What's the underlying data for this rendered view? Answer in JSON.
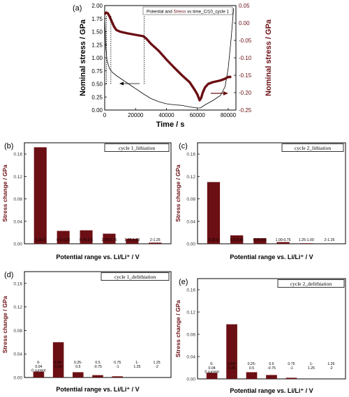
{
  "chart_data": [
    {
      "id": "a",
      "panel_label": "(a)",
      "type": "line",
      "legend": {
        "prefix": "Potential and ",
        "highlight": "Stress",
        "suffix": " vs time_C/10_cycle 1"
      },
      "xlabel": "Time / s",
      "ylabel_left": "Nominal stress / GPa",
      "ylabel_right": "Nominal stress / GPa",
      "xlim": [
        0,
        85000
      ],
      "ylim_left": [
        0,
        2.0
      ],
      "ylim_right": [
        -0.25,
        0.05
      ],
      "x_ticks": [
        "0",
        "20000",
        "40000",
        "60000",
        "80000"
      ],
      "y_ticks_left": [
        "0.00",
        "0.25",
        "0.50",
        "0.75",
        "1.00",
        "1.25",
        "1.50",
        "1.75",
        "2.00"
      ],
      "y_ticks_right": [
        "-0.25",
        "-0.20",
        "-0.15",
        "-0.10",
        "-0.05",
        "0.00",
        "0.05"
      ],
      "series": [
        {
          "role": "potential",
          "axis": "left",
          "color": "#000000",
          "x": [
            0,
            300,
            700,
            1500,
            3000,
            5000,
            8000,
            12000,
            18000,
            25000,
            30000,
            35000,
            40000,
            45000,
            50000,
            55000,
            60000,
            62000,
            65000,
            70000,
            75000,
            78000,
            80000,
            82000,
            83500
          ],
          "y": [
            1.78,
            1.55,
            1.2,
            0.95,
            0.8,
            0.72,
            0.65,
            0.57,
            0.45,
            0.31,
            0.22,
            0.16,
            0.12,
            0.1,
            0.09,
            0.06,
            0.04,
            0.04,
            0.1,
            0.18,
            0.28,
            0.45,
            0.8,
            1.4,
            1.95
          ]
        },
        {
          "role": "stress",
          "axis": "right",
          "color": "#6b0f14",
          "x": [
            0,
            1000,
            2000,
            3000,
            4000,
            5000,
            6000,
            7500,
            10000,
            15000,
            20000,
            25000,
            27000,
            30000,
            35000,
            40000,
            45000,
            50000,
            55000,
            58000,
            60000,
            61500,
            62500,
            63500,
            65000,
            67000,
            70000,
            75000,
            78000,
            80000,
            82000
          ],
          "y": [
            0.025,
            0.03,
            0.028,
            0.02,
            0.01,
            0.0,
            -0.01,
            -0.02,
            -0.025,
            -0.03,
            -0.034,
            -0.038,
            -0.045,
            -0.06,
            -0.08,
            -0.105,
            -0.128,
            -0.15,
            -0.17,
            -0.19,
            -0.205,
            -0.222,
            -0.215,
            -0.2,
            -0.185,
            -0.175,
            -0.17,
            -0.165,
            -0.16,
            -0.155,
            -0.155
          ]
        }
      ],
      "vlines_x": [
        1200,
        4000,
        25500
      ]
    },
    {
      "id": "b",
      "panel_label": "(b)",
      "type": "bar",
      "legend": "cycle 1_lithiation",
      "categories": [
        "0.25-0",
        "0.5-0.25",
        "0.75-0.5",
        "1.00-0.75",
        "1.25-1.00",
        "2-1.25"
      ],
      "values": [
        0.172,
        0.023,
        0.024,
        0.018,
        0.009,
        0.002
      ],
      "ylim": [
        0,
        0.18
      ],
      "y_ticks": [
        "0.00",
        "0.04",
        "0.08",
        "0.12",
        "0.16"
      ],
      "ylabel": "Stress change / GPa",
      "xlabel": "Potential range vs. Li/Li⁺ / V"
    },
    {
      "id": "c",
      "panel_label": "(c)",
      "type": "bar",
      "legend": "cycle 2_lithiation",
      "categories": [
        "0.25-0",
        "0.5-0.25",
        "0.75-0.5",
        "1.00-0.75",
        "1.25-1.00",
        "2-1.25"
      ],
      "values": [
        0.11,
        0.015,
        0.01,
        0.003,
        0.001,
        0.0
      ],
      "ylim": [
        0,
        0.18
      ],
      "y_ticks": [
        "0.00",
        "0.04",
        "0.08",
        "0.12",
        "0.16"
      ],
      "ylabel": "Stress change / GPa",
      "xlabel": "Potential range vs. Li/Li⁺ / V"
    },
    {
      "id": "d",
      "panel_label": "(d)",
      "type": "bar",
      "legend": "cycle 1_delithiation",
      "categories": [
        "0-\n0.04\n0 current",
        "0.04-\n0.25",
        "0.25-\n0.5",
        "0.5\n-0.75",
        "0.75\n-1",
        "1-\n1.25",
        "1.25\n-2"
      ],
      "values": [
        0.01,
        0.06,
        0.009,
        0.004,
        0.002,
        0.0,
        0.0
      ],
      "ylim": [
        0,
        0.18
      ],
      "y_ticks": [
        "0.00",
        "0.04",
        "0.08",
        "0.12",
        "0.16"
      ],
      "ylabel": "Stress change / GPa",
      "xlabel": "Potential range vs. Li/Li⁺ / V"
    },
    {
      "id": "e",
      "panel_label": "(e)",
      "type": "bar",
      "legend": "cycle 2_delithiation",
      "categories": [
        "0-\n0.04\n0 current",
        "0.04-\n0.25",
        "0.25-\n0.5",
        "0.5\n-0.75",
        "0.75\n-1",
        "1-\n1.25",
        "1.25\n-2"
      ],
      "values": [
        0.011,
        0.098,
        0.012,
        0.007,
        0.002,
        0.0,
        0.0
      ],
      "ylim": [
        0,
        0.18
      ],
      "y_ticks": [
        "0.00",
        "0.04",
        "0.08",
        "0.12",
        "0.16"
      ],
      "ylabel": "Stress change / GPa",
      "xlabel": "Potential range vs. Li/Li⁺ / V"
    }
  ],
  "colors": {
    "bar": "#6b0f14",
    "stress": "#6b0f14",
    "potential": "#000000",
    "label_red": "#6b0f14"
  }
}
